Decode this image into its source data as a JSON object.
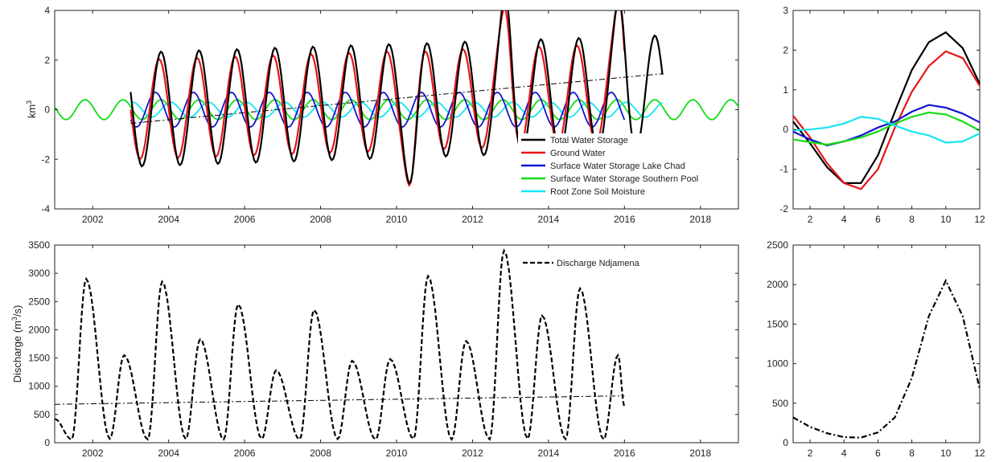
{
  "chart_data": [
    {
      "id": "tws",
      "type": "line",
      "ylabel_base": "km",
      "ylabel_sup": "3",
      "xlim": [
        2001,
        2019
      ],
      "ylim": [
        -4,
        4
      ],
      "xticks": [
        2002,
        2004,
        2006,
        2008,
        2010,
        2012,
        2014,
        2016,
        2018
      ],
      "yticks": [
        -4,
        -2,
        0,
        2,
        4
      ],
      "legend_position": "lower-right",
      "series": [
        {
          "name": "Total Water Storage",
          "color": "#000000",
          "style": "solid",
          "x_start": 2003.0,
          "amplitude": 2.3,
          "phase_offset": 0,
          "trend": [
            0.0,
            0.05
          ],
          "anomalies": {
            "2010.4": -3.1,
            "2012.9": 4.0,
            "2015.9": 3.6
          }
        },
        {
          "name": "Ground Water",
          "color": "#e8141a",
          "style": "solid",
          "x_start": 2003.0,
          "x_end": 2016.0,
          "amplitude": 2.0,
          "phase_offset": -0.05,
          "trend": [
            0.0,
            0.05
          ],
          "anomalies": {
            "2010.4": -3.1,
            "2012.9": 3.3,
            "2015.9": 3.5
          }
        },
        {
          "name": "Surface Water Storage Lake Chad",
          "color": "#1414d2",
          "style": "solid",
          "x_start": 2003.0,
          "x_end": 2016.0,
          "amplitude": 0.7,
          "phase_offset": -0.15
        },
        {
          "name": "Surface Water Storage Southern Pool",
          "color": "#14dc14",
          "style": "solid",
          "x_start": 2001.0,
          "x_end": 2019.0,
          "amplitude": 0.4,
          "phase_offset": 0.0
        },
        {
          "name": "Root Zone Soil Moisture",
          "color": "#14e6f0",
          "style": "solid",
          "x_start": 2003.0,
          "x_end": 2017.0,
          "amplitude": 0.3,
          "phase_offset": 0.25
        }
      ],
      "trendline": {
        "color": "#000000",
        "style": "dashdot",
        "x": [
          2003.0,
          2017.0
        ],
        "y": [
          -0.55,
          1.45
        ]
      }
    },
    {
      "id": "tws-monthly",
      "type": "line",
      "xlim": [
        1,
        12
      ],
      "ylim": [
        -2,
        3
      ],
      "xticks": [
        2,
        4,
        6,
        8,
        10,
        12
      ],
      "yticks": [
        -2,
        -1,
        0,
        1,
        2,
        3
      ],
      "series": [
        {
          "color": "#000000",
          "values": [
            0.2,
            -0.35,
            -0.95,
            -1.35,
            -1.35,
            -0.65,
            0.45,
            1.5,
            2.2,
            2.45,
            2.05,
            1.15
          ]
        },
        {
          "color": "#e8141a",
          "values": [
            0.35,
            -0.2,
            -0.85,
            -1.35,
            -1.5,
            -1.0,
            0.05,
            0.95,
            1.6,
            1.97,
            1.8,
            1.1
          ]
        },
        {
          "color": "#1414d2",
          "values": [
            -0.05,
            -0.25,
            -0.4,
            -0.3,
            -0.15,
            0.05,
            0.2,
            0.45,
            0.62,
            0.55,
            0.4,
            0.18
          ]
        },
        {
          "color": "#14dc14",
          "values": [
            -0.25,
            -0.32,
            -0.38,
            -0.3,
            -0.2,
            -0.05,
            0.15,
            0.32,
            0.43,
            0.38,
            0.2,
            -0.03
          ]
        },
        {
          "color": "#14e6f0",
          "values": [
            -0.02,
            0.0,
            0.05,
            0.15,
            0.32,
            0.27,
            0.1,
            -0.05,
            -0.15,
            -0.33,
            -0.3,
            -0.1
          ]
        }
      ]
    },
    {
      "id": "discharge",
      "type": "line",
      "ylabel": "Discharge (m",
      "ylabel_sup": "3",
      "ylabel_tail": "/s)",
      "xlim": [
        2001,
        2019
      ],
      "ylim": [
        0,
        3500
      ],
      "xticks": [
        2002,
        2004,
        2006,
        2008,
        2010,
        2012,
        2014,
        2016,
        2018
      ],
      "yticks": [
        0,
        500,
        1000,
        1500,
        2000,
        2500,
        3000,
        3500
      ],
      "legend_position": "top",
      "series": [
        {
          "name": "Discharge Ndjamena",
          "color": "#000000",
          "style": "dashed",
          "peaks": [
            {
              "x": 2001.83,
              "y": 2900
            },
            {
              "x": 2002.83,
              "y": 1550
            },
            {
              "x": 2003.83,
              "y": 2850
            },
            {
              "x": 2004.83,
              "y": 1830
            },
            {
              "x": 2005.83,
              "y": 2450
            },
            {
              "x": 2006.83,
              "y": 1280
            },
            {
              "x": 2007.83,
              "y": 2350
            },
            {
              "x": 2008.83,
              "y": 1450
            },
            {
              "x": 2009.83,
              "y": 1480
            },
            {
              "x": 2010.83,
              "y": 2950
            },
            {
              "x": 2011.83,
              "y": 1800
            },
            {
              "x": 2012.83,
              "y": 3400
            },
            {
              "x": 2013.83,
              "y": 2250
            },
            {
              "x": 2014.83,
              "y": 2730
            },
            {
              "x": 2015.83,
              "y": 1550
            }
          ],
          "troughs": [
            {
              "x": 2001.0,
              "y": 420
            },
            {
              "x": 2001.45,
              "y": 60
            },
            {
              "x": 2002.45,
              "y": 70
            },
            {
              "x": 2003.45,
              "y": 60
            },
            {
              "x": 2004.45,
              "y": 65
            },
            {
              "x": 2005.45,
              "y": 60
            },
            {
              "x": 2006.45,
              "y": 70
            },
            {
              "x": 2007.45,
              "y": 60
            },
            {
              "x": 2008.45,
              "y": 65
            },
            {
              "x": 2009.45,
              "y": 60
            },
            {
              "x": 2010.45,
              "y": 70
            },
            {
              "x": 2011.45,
              "y": 60
            },
            {
              "x": 2012.45,
              "y": 60
            },
            {
              "x": 2013.45,
              "y": 70
            },
            {
              "x": 2014.45,
              "y": 65
            },
            {
              "x": 2015.45,
              "y": 60
            },
            {
              "x": 2016.0,
              "y": 650
            }
          ]
        }
      ],
      "trendline": {
        "color": "#000000",
        "style": "dashdot",
        "x": [
          2001.0,
          2016.0
        ],
        "y": [
          680,
          830
        ]
      }
    },
    {
      "id": "discharge-monthly",
      "type": "line",
      "xlim": [
        1,
        12
      ],
      "ylim": [
        0,
        2500
      ],
      "xticks": [
        2,
        4,
        6,
        8,
        10,
        12
      ],
      "yticks": [
        0,
        500,
        1000,
        1500,
        2000,
        2500
      ],
      "series": [
        {
          "color": "#000000",
          "style": "dashdot",
          "values": [
            320,
            200,
            120,
            70,
            65,
            130,
            320,
            820,
            1600,
            2050,
            1600,
            680
          ]
        }
      ]
    }
  ]
}
